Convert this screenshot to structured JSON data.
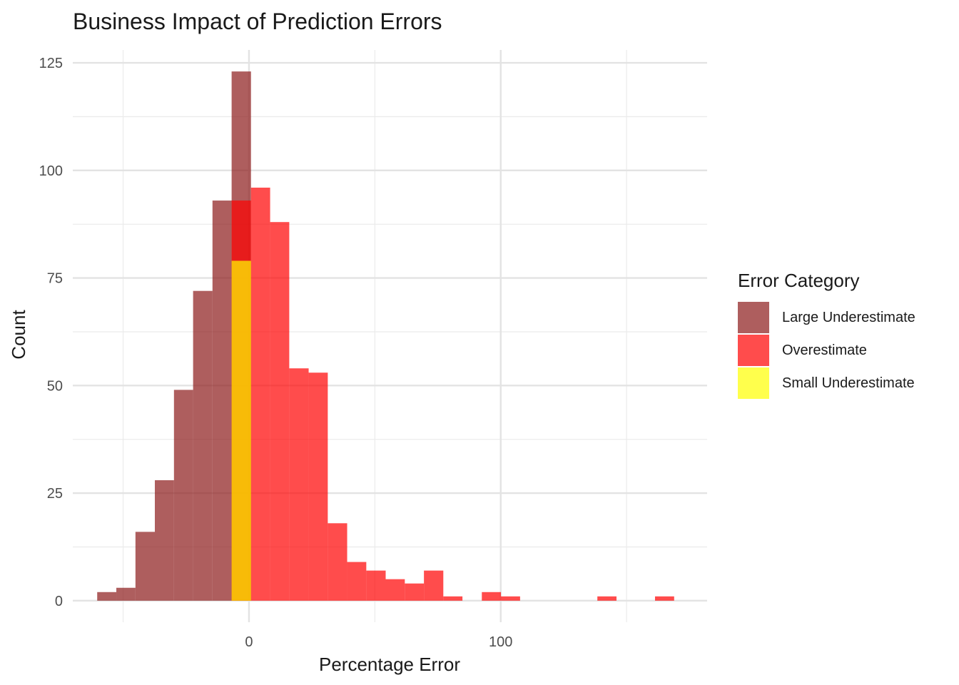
{
  "title": "Business Impact of Prediction Errors",
  "chart_data": {
    "type": "bar",
    "title": "Business Impact of Prediction Errors",
    "xlabel": "Percentage Error",
    "ylabel": "Count",
    "xlim": [
      -70,
      182
    ],
    "ylim": [
      -5,
      128
    ],
    "xticks": [
      0,
      100
    ],
    "yticks": [
      0,
      25,
      50,
      75,
      100,
      125
    ],
    "x_minor_gridlines": [
      -50,
      50,
      150
    ],
    "y_minor_gridlines": [
      12.5,
      37.5,
      62.5,
      87.5,
      112.5
    ],
    "bin_width": 7.64,
    "grid": true,
    "legend_title": "Error Category",
    "legend_position": "right",
    "series": [
      {
        "name": "Large Underestimate",
        "color": "#8b1a1a",
        "bins": [
          {
            "x0": -60.3,
            "x1": -52.7,
            "count": 2
          },
          {
            "x0": -52.7,
            "x1": -45.1,
            "count": 3
          },
          {
            "x0": -45.1,
            "x1": -37.4,
            "count": 16
          },
          {
            "x0": -37.4,
            "x1": -29.8,
            "count": 28
          },
          {
            "x0": -29.8,
            "x1": -22.2,
            "count": 49
          },
          {
            "x0": -22.2,
            "x1": -14.5,
            "count": 72
          },
          {
            "x0": -14.5,
            "x1": -6.9,
            "count": 93
          },
          {
            "x0": -6.9,
            "x1": 0.8,
            "count": 123
          }
        ]
      },
      {
        "name": "Overestimate",
        "color": "#ff0000",
        "bins": [
          {
            "x0": -6.9,
            "x1": 0.8,
            "count": 93
          },
          {
            "x0": 0.8,
            "x1": 8.4,
            "count": 96
          },
          {
            "x0": 8.4,
            "x1": 16.0,
            "count": 88
          },
          {
            "x0": 16.0,
            "x1": 23.7,
            "count": 54
          },
          {
            "x0": 23.7,
            "x1": 31.3,
            "count": 53
          },
          {
            "x0": 31.3,
            "x1": 39.0,
            "count": 18
          },
          {
            "x0": 39.0,
            "x1": 46.6,
            "count": 9
          },
          {
            "x0": 46.6,
            "x1": 54.3,
            "count": 7
          },
          {
            "x0": 54.3,
            "x1": 61.9,
            "count": 5
          },
          {
            "x0": 61.9,
            "x1": 69.5,
            "count": 4
          },
          {
            "x0": 69.5,
            "x1": 77.2,
            "count": 7
          },
          {
            "x0": 77.2,
            "x1": 84.8,
            "count": 1
          },
          {
            "x0": 92.5,
            "x1": 100.1,
            "count": 2
          },
          {
            "x0": 100.1,
            "x1": 107.7,
            "count": 1
          },
          {
            "x0": 138.4,
            "x1": 146.0,
            "count": 1
          },
          {
            "x0": 161.3,
            "x1": 168.9,
            "count": 1
          }
        ]
      },
      {
        "name": "Small Underestimate",
        "color": "#ffff00",
        "bins": [
          {
            "x0": -6.9,
            "x1": 0.8,
            "count": 79
          }
        ]
      }
    ]
  }
}
